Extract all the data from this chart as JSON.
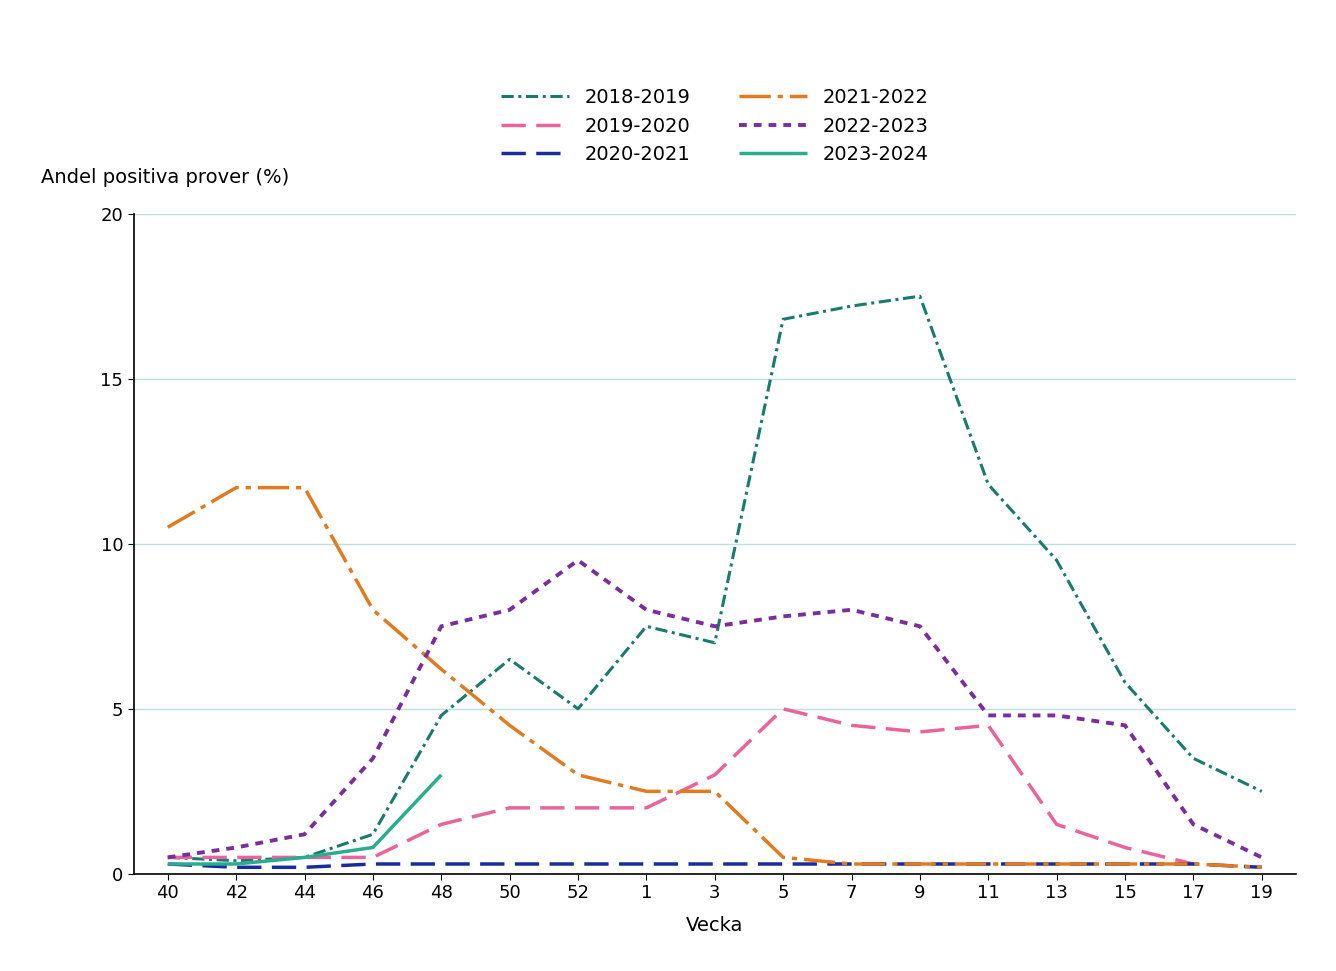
{
  "ylabel": "Andel positiva prover (%)",
  "xlabel": "Vecka",
  "ylim": [
    0,
    20
  ],
  "yticks": [
    0,
    5,
    10,
    15,
    20
  ],
  "x_labels": [
    "40",
    "42",
    "44",
    "46",
    "48",
    "50",
    "52",
    "1",
    "3",
    "5",
    "7",
    "9",
    "11",
    "13",
    "15",
    "17",
    "19"
  ],
  "background_color": "#ffffff",
  "grid_color": "#c0dede",
  "legend_fontsize": 14,
  "axis_label_fontsize": 14,
  "tick_fontsize": 13,
  "series": [
    {
      "name": "2018-2019",
      "color": "#1a7a6e",
      "linestyle": "dashdot_fine",
      "linewidth": 2.2,
      "values": [
        0.5,
        0.4,
        0.5,
        1.2,
        4.8,
        6.5,
        5.0,
        7.5,
        7.0,
        16.8,
        17.2,
        17.5,
        11.8,
        9.5,
        5.8,
        3.5,
        2.5
      ]
    },
    {
      "name": "2019-2020",
      "color": "#e8649a",
      "linestyle": "longdash",
      "linewidth": 2.5,
      "values": [
        0.5,
        0.5,
        0.5,
        0.5,
        1.5,
        2.0,
        2.0,
        2.0,
        3.0,
        5.0,
        4.5,
        4.3,
        4.5,
        1.5,
        0.8,
        0.3,
        null
      ]
    },
    {
      "name": "2020-2021",
      "color": "#1a2b9e",
      "linestyle": "longdash",
      "linewidth": 2.5,
      "values": [
        0.3,
        0.2,
        0.2,
        0.3,
        0.3,
        0.3,
        0.3,
        0.3,
        0.3,
        0.3,
        0.3,
        0.3,
        0.3,
        0.3,
        0.3,
        0.3,
        0.2
      ]
    },
    {
      "name": "2021-2022",
      "color": "#e07b20",
      "linestyle": "dashdot_long",
      "linewidth": 2.5,
      "values": [
        10.5,
        11.7,
        11.7,
        8.0,
        6.2,
        4.5,
        3.0,
        2.5,
        2.5,
        0.5,
        0.3,
        0.3,
        0.3,
        0.3,
        0.3,
        0.3,
        0.2
      ]
    },
    {
      "name": "2022-2023",
      "color": "#7b2d9e",
      "linestyle": "densedot",
      "linewidth": 2.8,
      "values": [
        0.5,
        0.8,
        1.2,
        3.5,
        7.5,
        8.0,
        9.5,
        8.0,
        7.5,
        7.8,
        8.0,
        7.5,
        4.8,
        4.8,
        4.5,
        1.5,
        0.5
      ]
    },
    {
      "name": "2023-2024",
      "color": "#2aad8f",
      "linestyle": "solid",
      "linewidth": 2.5,
      "values": [
        0.3,
        0.3,
        0.5,
        0.8,
        3.0,
        null,
        null,
        null,
        null,
        null,
        null,
        null,
        null,
        null,
        null,
        null,
        null
      ]
    }
  ]
}
